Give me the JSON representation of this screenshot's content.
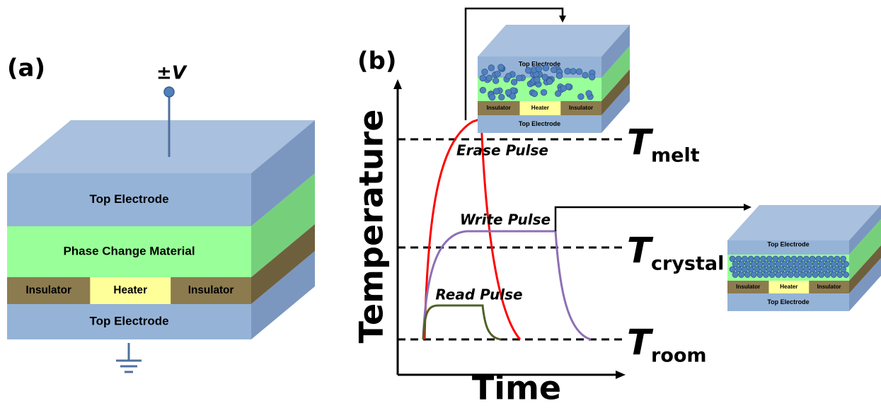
{
  "panel_a": {
    "label": "(a)",
    "voltage": "±V",
    "device": {
      "top": "Top Electrode",
      "middle": "Phase Change Material",
      "insulator_left": "Insulator",
      "heater": "Heater",
      "insulator_right": "Insulator",
      "bottom": "Top Electrode"
    }
  },
  "panel_b": {
    "label": "(b)",
    "y_axis": "Temperature",
    "x_axis": "Time",
    "pulses": [
      {
        "name": "Erase Pulse"
      },
      {
        "name": "Write Pulse"
      },
      {
        "name": "Read Pulse"
      }
    ],
    "levels": [
      {
        "symbol": "T",
        "subscript": "melt"
      },
      {
        "symbol": "T",
        "subscript": "crystal"
      },
      {
        "symbol": "T",
        "subscript": "room"
      }
    ],
    "insets": [
      {
        "top": "Top Electrode",
        "insulator_left": "Insulator",
        "heater": "Heater",
        "insulator_right": "Insulator",
        "bottom": "Top Electrode"
      },
      {
        "top": "Top Electrode",
        "insulator_left": "Insulator",
        "heater": "Heater",
        "insulator_right": "Insulator",
        "bottom": "Top Electrode"
      }
    ]
  }
}
